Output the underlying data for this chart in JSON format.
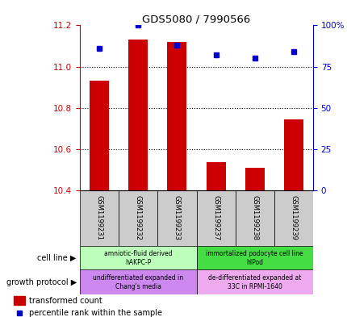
{
  "title": "GDS5080 / 7990566",
  "samples": [
    "GSM1199231",
    "GSM1199232",
    "GSM1199233",
    "GSM1199237",
    "GSM1199238",
    "GSM1199239"
  ],
  "bar_values": [
    10.93,
    11.13,
    11.12,
    10.535,
    10.51,
    10.745
  ],
  "dot_values": [
    86,
    100,
    88,
    82,
    80,
    84
  ],
  "ylim_left": [
    10.4,
    11.2
  ],
  "ylim_right": [
    0,
    100
  ],
  "yticks_left": [
    10.4,
    10.6,
    10.8,
    11.0,
    11.2
  ],
  "yticks_right": [
    0,
    25,
    50,
    75,
    100
  ],
  "bar_color": "#cc0000",
  "dot_color": "#0000cc",
  "bar_width": 0.5,
  "cell_line_groups": [
    {
      "label": "amniotic-fluid derived\nhAKPC-P",
      "start": 0,
      "end": 3,
      "color": "#bbffbb"
    },
    {
      "label": "immortalized podocyte cell line\nhIPod",
      "start": 3,
      "end": 6,
      "color": "#44dd44"
    }
  ],
  "growth_protocol_groups": [
    {
      "label": "undifferentiated expanded in\nChang's media",
      "start": 0,
      "end": 3,
      "color": "#cc88ee"
    },
    {
      "label": "de-differentiated expanded at\n33C in RPMI-1640",
      "start": 3,
      "end": 6,
      "color": "#eeaaee"
    }
  ],
  "cell_line_label": "cell line",
  "growth_protocol_label": "growth protocol",
  "legend_bar_label": "transformed count",
  "legend_dot_label": "percentile rank within the sample",
  "left_axis_color": "#cc0000",
  "right_axis_color": "#0000cc",
  "tick_label_color_left": "#cc0000",
  "tick_label_color_right": "#0000cc",
  "sample_bg_color": "#cccccc"
}
